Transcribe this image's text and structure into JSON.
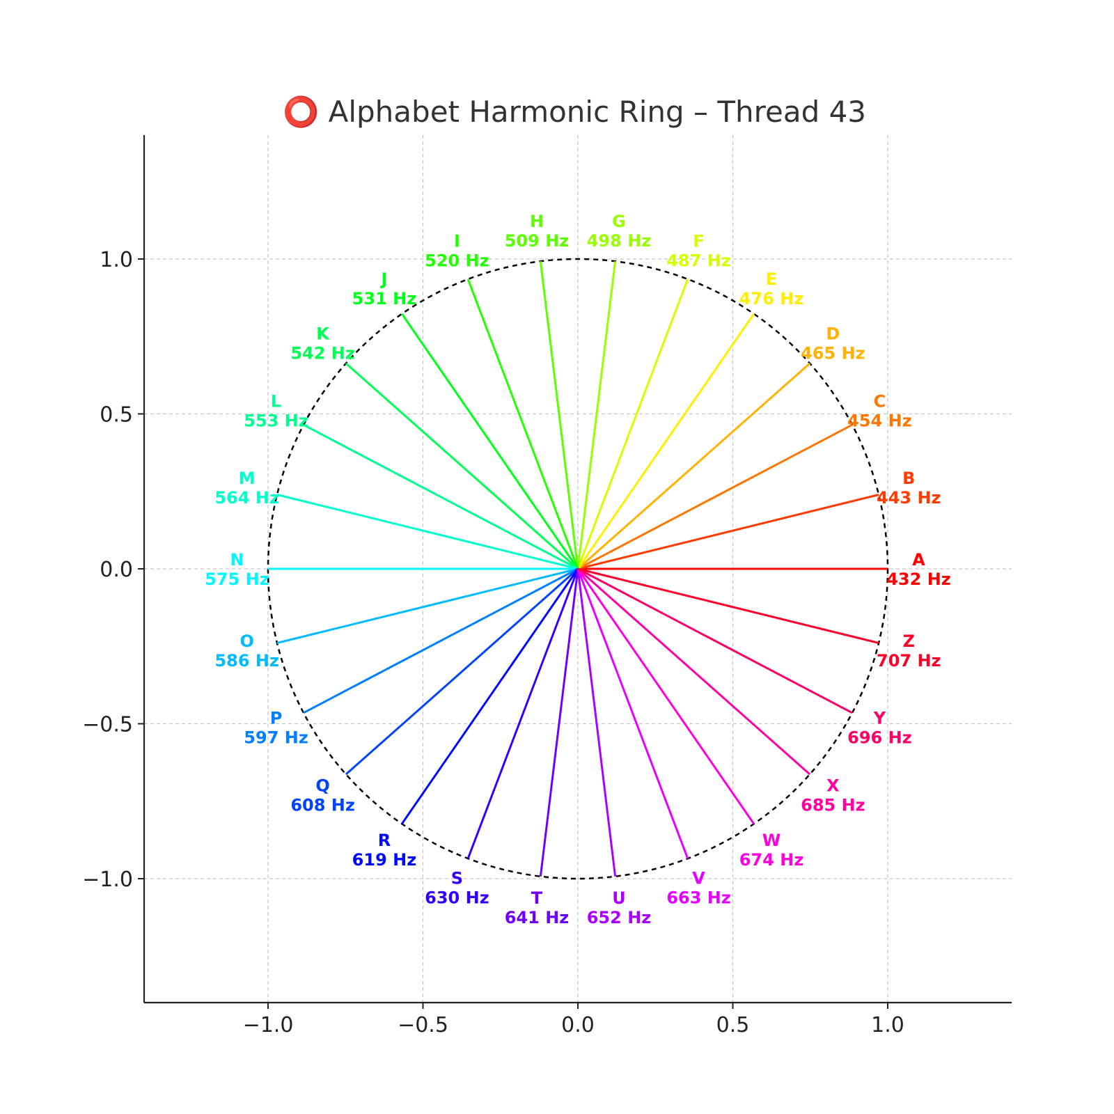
{
  "chart_data": {
    "type": "radial-line",
    "title": "⭕ Alphabet Harmonic Ring – Thread 43",
    "xlabel": "",
    "ylabel": "",
    "xlim": [
      -1.4,
      1.4
    ],
    "ylim": [
      -1.4,
      1.4
    ],
    "xticks": [
      -1.0,
      -0.5,
      0.0,
      0.5,
      1.0
    ],
    "yticks": [
      -1.0,
      -0.5,
      0.0,
      0.5,
      1.0
    ],
    "xtick_labels": [
      "−1.0",
      "−0.5",
      "0.0",
      "0.5",
      "1.0"
    ],
    "ytick_labels": [
      "−1.0",
      "−0.5",
      "0.0",
      "0.5",
      "1.0"
    ],
    "grid": true,
    "unit_circle": true,
    "unit": "Hz",
    "letters": [
      {
        "letter": "A",
        "frequency": 432,
        "color": "#ff0000"
      },
      {
        "letter": "B",
        "frequency": 443,
        "color": "#ff3b00"
      },
      {
        "letter": "C",
        "frequency": 454,
        "color": "#ff7700"
      },
      {
        "letter": "D",
        "frequency": 465,
        "color": "#ffb200"
      },
      {
        "letter": "E",
        "frequency": 476,
        "color": "#ffee00"
      },
      {
        "letter": "F",
        "frequency": 487,
        "color": "#d4ff00"
      },
      {
        "letter": "G",
        "frequency": 498,
        "color": "#99ff00"
      },
      {
        "letter": "H",
        "frequency": 509,
        "color": "#5dff00"
      },
      {
        "letter": "I",
        "frequency": 520,
        "color": "#22ff00"
      },
      {
        "letter": "J",
        "frequency": 531,
        "color": "#00ff1a"
      },
      {
        "letter": "K",
        "frequency": 542,
        "color": "#00ff55"
      },
      {
        "letter": "L",
        "frequency": 553,
        "color": "#00ff91"
      },
      {
        "letter": "M",
        "frequency": 564,
        "color": "#00ffcc"
      },
      {
        "letter": "N",
        "frequency": 575,
        "color": "#00f7ff"
      },
      {
        "letter": "O",
        "frequency": 586,
        "color": "#00bbff"
      },
      {
        "letter": "P",
        "frequency": 597,
        "color": "#0080ff"
      },
      {
        "letter": "Q",
        "frequency": 608,
        "color": "#0044ff"
      },
      {
        "letter": "R",
        "frequency": 619,
        "color": "#0008ff"
      },
      {
        "letter": "S",
        "frequency": 630,
        "color": "#3300ff"
      },
      {
        "letter": "T",
        "frequency": 641,
        "color": "#6e00ff"
      },
      {
        "letter": "U",
        "frequency": 652,
        "color": "#aa00ff"
      },
      {
        "letter": "V",
        "frequency": 663,
        "color": "#e500ff"
      },
      {
        "letter": "W",
        "frequency": 674,
        "color": "#ff00dd"
      },
      {
        "letter": "X",
        "frequency": 685,
        "color": "#ff00a2"
      },
      {
        "letter": "Y",
        "frequency": 696,
        "color": "#ff0066"
      },
      {
        "letter": "Z",
        "frequency": 707,
        "color": "#ff002b"
      }
    ]
  }
}
